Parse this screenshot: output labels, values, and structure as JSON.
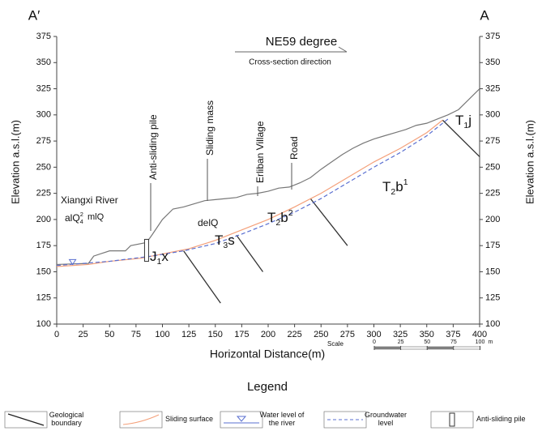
{
  "chart_data": {
    "type": "line",
    "section_ends": [
      "A′",
      "A"
    ],
    "direction": "NE59 degree",
    "direction_caption": "Cross-section direction",
    "xlabel": "Horizontal Distance(m)",
    "ylabel": "Elevation a.s.l.(m)",
    "y2label": "Elevation a.s.l.(m)",
    "xlim": [
      0,
      400
    ],
    "ylim": [
      100,
      375
    ],
    "y2lim": [
      100,
      375
    ],
    "xticks": [
      0,
      25,
      50,
      75,
      100,
      125,
      150,
      175,
      200,
      225,
      250,
      275,
      300,
      325,
      350,
      375,
      400
    ],
    "yticks": [
      100,
      125,
      150,
      175,
      200,
      225,
      250,
      275,
      300,
      325,
      350,
      375
    ],
    "y2ticks": [
      100,
      125,
      150,
      175,
      200,
      225,
      250,
      275,
      300,
      325,
      350,
      375
    ],
    "series": [
      {
        "color": "#777777",
        "dash": false,
        "x": [
          0,
          30,
          35,
          50,
          65,
          70,
          85,
          90,
          100,
          110,
          120,
          130,
          140,
          150,
          160,
          170,
          180,
          190,
          200,
          210,
          220,
          230,
          240,
          250,
          260,
          270,
          280,
          290,
          300,
          310,
          320,
          330,
          340,
          350,
          360,
          370,
          380,
          400
        ],
        "values": [
          157,
          158,
          165,
          170,
          170,
          175,
          178,
          185,
          200,
          210,
          212,
          215,
          218,
          219,
          220,
          221,
          224,
          225,
          227,
          230,
          231,
          235,
          240,
          248,
          255,
          262,
          268,
          273,
          277,
          280,
          283,
          286,
          290,
          292,
          296,
          300,
          305,
          325
        ]
      },
      {
        "color": "#f4a07a",
        "dash": false,
        "x": [
          0,
          30,
          50,
          80,
          100,
          125,
          150,
          175,
          200,
          225,
          250,
          275,
          300,
          325,
          350,
          365
        ],
        "values": [
          155,
          157,
          160,
          163,
          167,
          172,
          180,
          190,
          200,
          212,
          225,
          240,
          255,
          268,
          283,
          295
        ]
      },
      {
        "color": "#5a6fd0",
        "dash": true,
        "x": [
          0,
          50,
          90,
          120,
          150,
          175,
          200,
          225,
          250,
          275,
          300,
          325,
          350,
          370
        ],
        "values": [
          156,
          160,
          165,
          170,
          177,
          186,
          196,
          207,
          220,
          235,
          250,
          264,
          280,
          296
        ]
      }
    ],
    "boundaries": [
      {
        "x": [
          120,
          155
        ],
        "y": [
          170,
          120
        ]
      },
      {
        "x": [
          170,
          195
        ],
        "y": [
          185,
          150
        ]
      },
      {
        "x": [
          240,
          275
        ],
        "y": [
          220,
          175
        ]
      },
      {
        "x": [
          365,
          400
        ],
        "y": [
          295,
          260
        ]
      }
    ],
    "river_level": {
      "x": 15,
      "y": 157
    },
    "pile": {
      "x": 85,
      "bottom": 160,
      "top": 181
    },
    "annotations": [
      "Xiangxi River",
      "Anti-sliding pile",
      "Sliding mass",
      "Erliban Village",
      "Road"
    ],
    "strata": [
      [
        {
          "text": "alQ"
        },
        {
          "text": "2",
          "sup": true
        },
        {
          "text": "4",
          "sub": true
        }
      ],
      [
        {
          "text": "mlQ"
        }
      ],
      [
        {
          "text": "delQ"
        }
      ],
      [
        {
          "text": "J"
        },
        {
          "text": "1",
          "sub": true
        },
        {
          "text": "x"
        }
      ],
      [
        {
          "text": "T"
        },
        {
          "text": "3",
          "sub": true
        },
        {
          "text": "s"
        }
      ],
      [
        {
          "text": "T"
        },
        {
          "text": "2",
          "sub": true
        },
        {
          "text": "b"
        },
        {
          "text": "2",
          "sup": true
        }
      ],
      [
        {
          "text": "T"
        },
        {
          "text": "2",
          "sub": true
        },
        {
          "text": "b"
        },
        {
          "text": "1",
          "sup": true
        }
      ],
      [
        {
          "text": "T"
        },
        {
          "text": "1",
          "sub": true
        },
        {
          "text": "j"
        }
      ]
    ],
    "scale": {
      "label": "Scale",
      "ticks": [
        0,
        25,
        50,
        75,
        100
      ],
      "unit": "m"
    },
    "legend": {
      "title": "Legend",
      "items": [
        [
          "Geological",
          "boundary"
        ],
        [
          "Sliding surface"
        ],
        [
          "Water level of",
          "the river"
        ],
        [
          "Groundwater",
          "level"
        ],
        [
          "Anti-sliding pile"
        ]
      ]
    }
  }
}
